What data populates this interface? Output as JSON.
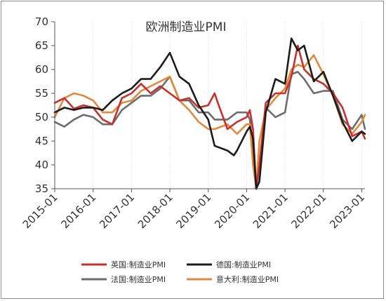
{
  "chart_data": {
    "type": "line",
    "title": "欧洲制造业PMI",
    "xlabel": "",
    "ylabel": "",
    "ylim": [
      35,
      70
    ],
    "yticks": [
      35,
      40,
      45,
      50,
      55,
      60,
      65,
      70
    ],
    "xtick_labels": [
      "2015-01",
      "2016-01",
      "2017-01",
      "2018-01",
      "2019-01",
      "2020-01",
      "2021-01",
      "2022-01",
      "2023-01"
    ],
    "xlim": [
      "2015-01",
      "2023-02"
    ],
    "grid": {
      "x": true,
      "y": false
    },
    "legend_placement": "bottom",
    "series": [
      {
        "name": "英国:制造业PMI",
        "color": "#c8302d",
        "points": [
          [
            "2015-01",
            53
          ],
          [
            "2015-04",
            54
          ],
          [
            "2015-07",
            51.8
          ],
          [
            "2015-10",
            52.5
          ],
          [
            "2016-01",
            52
          ],
          [
            "2016-04",
            49.5
          ],
          [
            "2016-07",
            48.5
          ],
          [
            "2016-10",
            54
          ],
          [
            "2017-01",
            55
          ],
          [
            "2017-04",
            57
          ],
          [
            "2017-07",
            55
          ],
          [
            "2017-10",
            56.5
          ],
          [
            "2018-01",
            55
          ],
          [
            "2018-04",
            53.5
          ],
          [
            "2018-07",
            54
          ],
          [
            "2018-10",
            52
          ],
          [
            "2019-01",
            52.5
          ],
          [
            "2019-03",
            55
          ],
          [
            "2019-04",
            53
          ],
          [
            "2019-07",
            47.5
          ],
          [
            "2019-10",
            49
          ],
          [
            "2020-01",
            50
          ],
          [
            "2020-02",
            51.5
          ],
          [
            "2020-03",
            47.5
          ],
          [
            "2020-04",
            35
          ],
          [
            "2020-05",
            40
          ],
          [
            "2020-07",
            53
          ],
          [
            "2020-10",
            55
          ],
          [
            "2021-01",
            55
          ],
          [
            "2021-03",
            58.5
          ],
          [
            "2021-05",
            65
          ],
          [
            "2021-07",
            60
          ],
          [
            "2021-10",
            58
          ],
          [
            "2022-01",
            57
          ],
          [
            "2022-04",
            55
          ],
          [
            "2022-07",
            52
          ],
          [
            "2022-10",
            46
          ],
          [
            "2023-01",
            47
          ],
          [
            "2023-02",
            45.5
          ]
        ]
      },
      {
        "name": "德国:制造业PMI",
        "color": "#1c1c1c",
        "points": [
          [
            "2015-01",
            51
          ],
          [
            "2015-04",
            52
          ],
          [
            "2015-07",
            51.5
          ],
          [
            "2015-10",
            52
          ],
          [
            "2016-01",
            52
          ],
          [
            "2016-04",
            51.5
          ],
          [
            "2016-07",
            53.5
          ],
          [
            "2016-10",
            55
          ],
          [
            "2017-01",
            56
          ],
          [
            "2017-04",
            58
          ],
          [
            "2017-07",
            58
          ],
          [
            "2017-10",
            60.5
          ],
          [
            "2018-01",
            63.5
          ],
          [
            "2018-04",
            58.5
          ],
          [
            "2018-07",
            57
          ],
          [
            "2018-10",
            52.5
          ],
          [
            "2019-01",
            49.5
          ],
          [
            "2019-03",
            44
          ],
          [
            "2019-07",
            43
          ],
          [
            "2019-09",
            42
          ],
          [
            "2019-10",
            43
          ],
          [
            "2020-01",
            47
          ],
          [
            "2020-02",
            48
          ],
          [
            "2020-03",
            45.5
          ],
          [
            "2020-04",
            35
          ],
          [
            "2020-05",
            36.5
          ],
          [
            "2020-07",
            51
          ],
          [
            "2020-10",
            58
          ],
          [
            "2021-01",
            57
          ],
          [
            "2021-03",
            66.5
          ],
          [
            "2021-05",
            64
          ],
          [
            "2021-07",
            65
          ],
          [
            "2021-10",
            57.5
          ],
          [
            "2022-01",
            59.5
          ],
          [
            "2022-04",
            54.5
          ],
          [
            "2022-07",
            49
          ],
          [
            "2022-10",
            45
          ],
          [
            "2023-01",
            47
          ],
          [
            "2023-02",
            46.5
          ]
        ]
      },
      {
        "name": "法国:制造业PMI",
        "color": "#6d6d6d",
        "points": [
          [
            "2015-01",
            49
          ],
          [
            "2015-04",
            48
          ],
          [
            "2015-07",
            49.5
          ],
          [
            "2015-10",
            50.5
          ],
          [
            "2016-01",
            50
          ],
          [
            "2016-04",
            48.5
          ],
          [
            "2016-07",
            48.5
          ],
          [
            "2016-10",
            51.5
          ],
          [
            "2017-01",
            53
          ],
          [
            "2017-04",
            54.5
          ],
          [
            "2017-07",
            54.5
          ],
          [
            "2017-10",
            56
          ],
          [
            "2018-01",
            58.5
          ],
          [
            "2018-04",
            53.5
          ],
          [
            "2018-07",
            53.5
          ],
          [
            "2018-10",
            51
          ],
          [
            "2019-01",
            51
          ],
          [
            "2019-03",
            49.5
          ],
          [
            "2019-07",
            49.5
          ],
          [
            "2019-10",
            51
          ],
          [
            "2020-01",
            51
          ],
          [
            "2020-02",
            49.5
          ],
          [
            "2020-03",
            43
          ],
          [
            "2020-04",
            35
          ],
          [
            "2020-05",
            40
          ],
          [
            "2020-07",
            52
          ],
          [
            "2020-10",
            50
          ],
          [
            "2021-01",
            51
          ],
          [
            "2021-03",
            59
          ],
          [
            "2021-05",
            59.5
          ],
          [
            "2021-07",
            58
          ],
          [
            "2021-10",
            55
          ],
          [
            "2022-01",
            55.5
          ],
          [
            "2022-04",
            55.5
          ],
          [
            "2022-07",
            49.5
          ],
          [
            "2022-10",
            47.5
          ],
          [
            "2023-01",
            50.5
          ],
          [
            "2023-02",
            47.5
          ]
        ]
      },
      {
        "name": "意大利:制造业PMI",
        "color": "#e08a3c",
        "points": [
          [
            "2015-01",
            50
          ],
          [
            "2015-04",
            54
          ],
          [
            "2015-07",
            55
          ],
          [
            "2015-10",
            54.5
          ],
          [
            "2016-01",
            53.5
          ],
          [
            "2016-04",
            51
          ],
          [
            "2016-07",
            51
          ],
          [
            "2016-10",
            53
          ],
          [
            "2017-01",
            53.5
          ],
          [
            "2017-04",
            55.5
          ],
          [
            "2017-07",
            56.5
          ],
          [
            "2017-10",
            57.5
          ],
          [
            "2018-01",
            58.5
          ],
          [
            "2018-04",
            53.5
          ],
          [
            "2018-07",
            51.5
          ],
          [
            "2018-10",
            49
          ],
          [
            "2019-01",
            47.5
          ],
          [
            "2019-03",
            47.5
          ],
          [
            "2019-07",
            48.5
          ],
          [
            "2019-10",
            46.5
          ],
          [
            "2020-01",
            48.5
          ],
          [
            "2020-02",
            48.5
          ],
          [
            "2020-03",
            40
          ],
          [
            "2020-04",
            35
          ],
          [
            "2020-05",
            45
          ],
          [
            "2020-07",
            51.5
          ],
          [
            "2020-10",
            54
          ],
          [
            "2021-01",
            56
          ],
          [
            "2021-03",
            60
          ],
          [
            "2021-05",
            61
          ],
          [
            "2021-07",
            60.5
          ],
          [
            "2021-10",
            63
          ],
          [
            "2022-01",
            59
          ],
          [
            "2022-04",
            54.5
          ],
          [
            "2022-07",
            48.5
          ],
          [
            "2022-10",
            46.5
          ],
          [
            "2023-01",
            49
          ],
          [
            "2023-02",
            50.5
          ]
        ]
      }
    ]
  }
}
